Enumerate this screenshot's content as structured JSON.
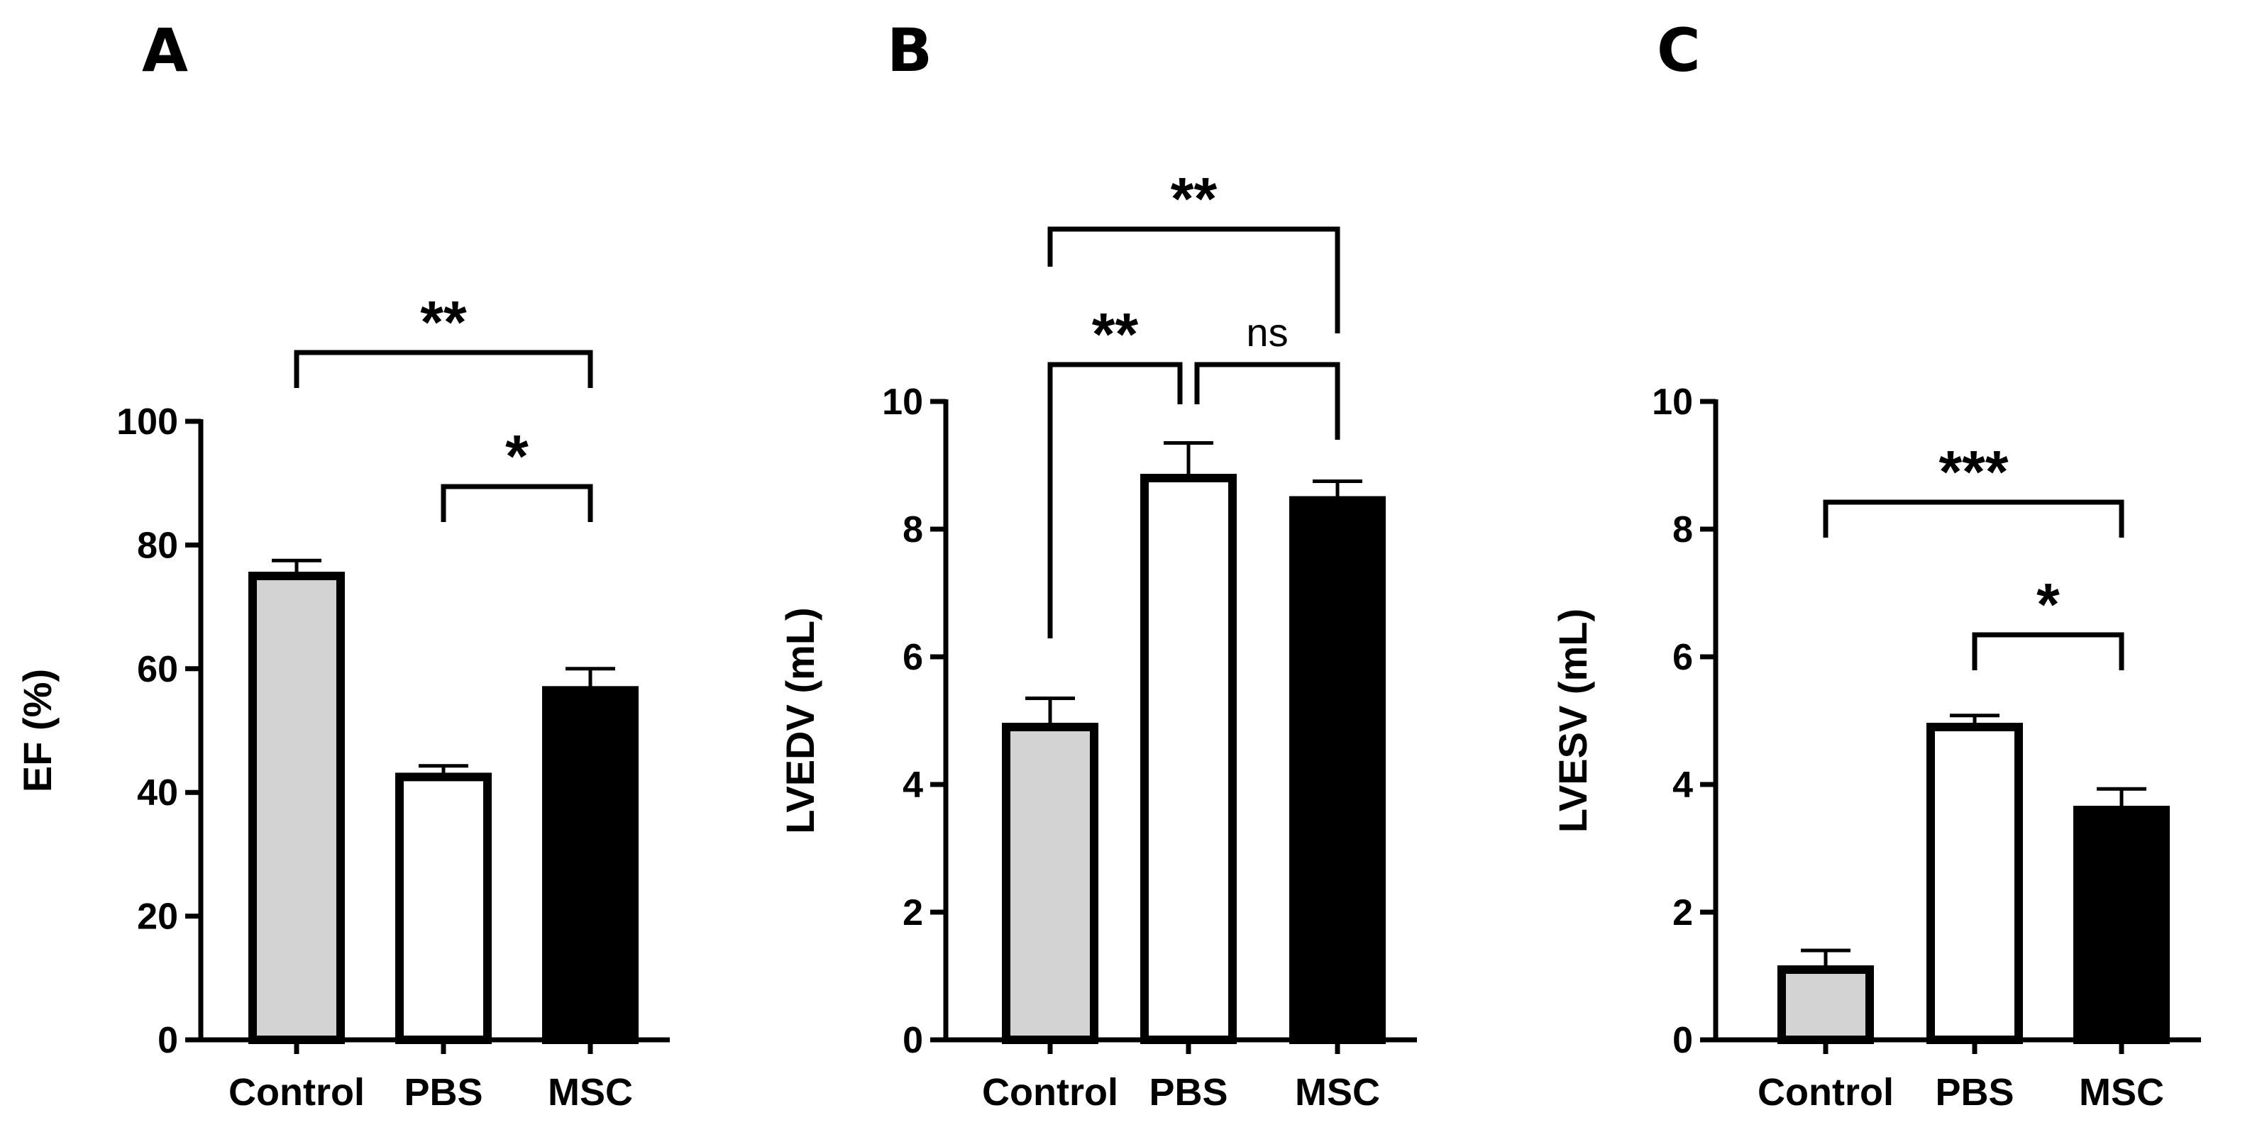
{
  "chart_data": [
    {
      "type": "bar",
      "panel": "A",
      "ylabel": "EF (%)",
      "ylim": [
        0,
        100
      ],
      "yticks": [
        0,
        20,
        40,
        60,
        80,
        100
      ],
      "categories": [
        "Control",
        "PBS",
        "MSC"
      ],
      "values": [
        75,
        42.5,
        56.5
      ],
      "errors": [
        2.5,
        1.8,
        3.5
      ],
      "bar_colors": [
        "#d3d3d3",
        "#ffffff",
        "#000000"
      ],
      "brackets": [
        {
          "from": 0,
          "to": 2,
          "label": "**"
        },
        {
          "from": 1,
          "to": 2,
          "label": "*"
        }
      ]
    },
    {
      "type": "bar",
      "panel": "B",
      "ylabel": "LVEDV  (mL)",
      "ylim": [
        0,
        10
      ],
      "yticks": [
        0,
        2,
        4,
        6,
        8,
        10
      ],
      "categories": [
        "Control",
        "PBS",
        "MSC"
      ],
      "values": [
        4.9,
        8.8,
        8.45
      ],
      "errors": [
        0.45,
        0.55,
        0.3
      ],
      "bar_colors": [
        "#d3d3d3",
        "#ffffff",
        "#000000"
      ],
      "brackets": [
        {
          "from": 0,
          "to": 1,
          "label": "**"
        },
        {
          "from": 1,
          "to": 2,
          "label": "ns"
        },
        {
          "from": 0,
          "to": 2,
          "label": "**"
        }
      ]
    },
    {
      "type": "bar",
      "panel": "C",
      "ylabel": "LVESV (mL)",
      "ylim": [
        0,
        10
      ],
      "yticks": [
        0,
        2,
        4,
        6,
        8,
        10
      ],
      "categories": [
        "Control",
        "PBS",
        "MSC"
      ],
      "values": [
        1.1,
        4.9,
        3.6
      ],
      "errors": [
        0.3,
        0.18,
        0.33
      ],
      "bar_colors": [
        "#d3d3d3",
        "#ffffff",
        "#000000"
      ],
      "brackets": [
        {
          "from": 0,
          "to": 2,
          "label": "***"
        },
        {
          "from": 1,
          "to": 2,
          "label": "*"
        }
      ]
    }
  ]
}
